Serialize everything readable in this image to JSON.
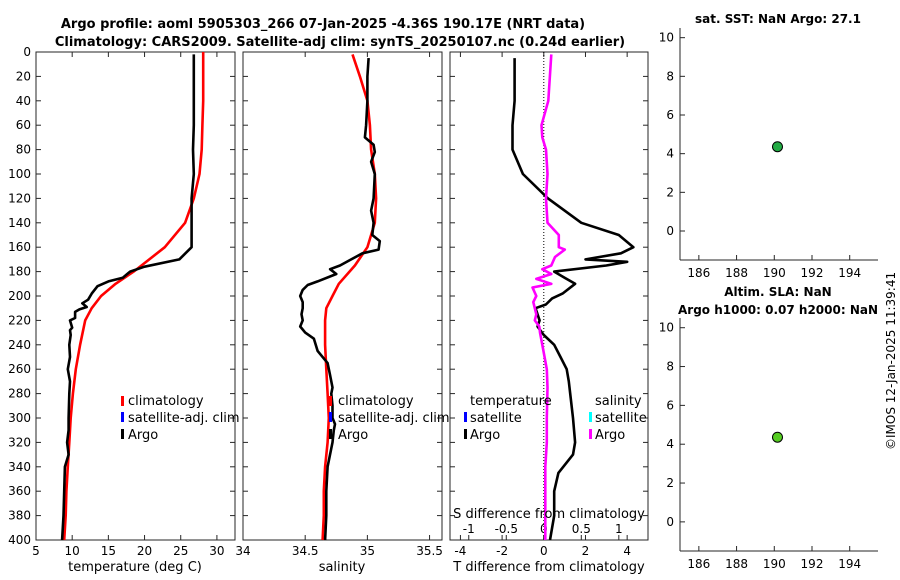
{
  "title": {
    "line1": "Argo profile: aoml 5905303_266 07-Jan-2025 -4.36S 190.17E (NRT data)",
    "line2": "Climatology: CARS2009. Satellite-adj clim: synTS_20250107.nc (0.24d earlier)"
  },
  "timestamp": "©IMOS 12-Jan-2025 11:39:41",
  "colors": {
    "climatology": "#ff0000",
    "satellite_adj": "#0000ff",
    "argo": "#000000",
    "salinity_satellite": "#00ffff",
    "salinity_argo": "#ff00ff",
    "dot_sst": "#22aa44",
    "dot_sla": "#55cc22"
  },
  "legend_profiles": {
    "climatology": "climatology",
    "satellite": "satellite-adj. clim",
    "argo": "Argo"
  },
  "legend_diff": {
    "temperature_title": "temperature",
    "salinity_title": "salinity",
    "satellite": "satellite",
    "argo": "Argo"
  },
  "chart_data": [
    {
      "type": "line",
      "name": "temperature",
      "xlabel": "temperature (deg C)",
      "ylabel": "",
      "xlim": [
        5,
        32.5
      ],
      "ylim": [
        0,
        400
      ],
      "xticks": [
        5,
        10,
        15,
        20,
        25,
        30
      ],
      "yticks": [
        0,
        20,
        40,
        60,
        80,
        100,
        120,
        140,
        160,
        180,
        200,
        220,
        240,
        260,
        280,
        300,
        320,
        340,
        360,
        380,
        400
      ],
      "series": [
        {
          "name": "climatology",
          "color": "red",
          "points": [
            [
              28.1,
              0
            ],
            [
              28.1,
              20
            ],
            [
              28.1,
              40
            ],
            [
              28.0,
              60
            ],
            [
              27.9,
              80
            ],
            [
              27.6,
              100
            ],
            [
              26.8,
              120
            ],
            [
              25.6,
              140
            ],
            [
              22.8,
              160
            ],
            [
              18.5,
              180
            ],
            [
              16,
              190
            ],
            [
              14,
              200
            ],
            [
              12.7,
              210
            ],
            [
              11.8,
              220
            ],
            [
              11.1,
              240
            ],
            [
              10.5,
              260
            ],
            [
              10.1,
              280
            ],
            [
              9.8,
              300
            ],
            [
              9.6,
              320
            ],
            [
              9.4,
              340
            ],
            [
              9.2,
              360
            ],
            [
              9.1,
              380
            ],
            [
              8.9,
              400
            ]
          ]
        },
        {
          "name": "Argo",
          "color": "black",
          "points": [
            [
              26.8,
              2
            ],
            [
              26.8,
              20
            ],
            [
              26.8,
              40
            ],
            [
              26.8,
              60
            ],
            [
              26.7,
              80
            ],
            [
              26.8,
              100
            ],
            [
              26.5,
              120
            ],
            [
              26.5,
              140
            ],
            [
              26.5,
              160
            ],
            [
              24.8,
              170
            ],
            [
              20,
              176
            ],
            [
              18,
              180
            ],
            [
              17,
              185
            ],
            [
              15,
              188
            ],
            [
              13.5,
              192
            ],
            [
              12.7,
              198
            ],
            [
              12.2,
              203
            ],
            [
              11.4,
              206
            ],
            [
              12,
              209
            ],
            [
              11,
              211
            ],
            [
              10.4,
              213
            ],
            [
              10.4,
              218
            ],
            [
              9.7,
              220
            ],
            [
              10,
              226
            ],
            [
              9.7,
              228
            ],
            [
              9.8,
              232
            ],
            [
              9.6,
              240
            ],
            [
              9.7,
              250
            ],
            [
              9.4,
              260
            ],
            [
              9.7,
              270
            ],
            [
              9.6,
              280
            ],
            [
              9.5,
              300
            ],
            [
              9.5,
              310
            ],
            [
              9.3,
              320
            ],
            [
              9.5,
              330
            ],
            [
              9,
              340
            ],
            [
              8.9,
              360
            ],
            [
              8.8,
              380
            ],
            [
              8.6,
              400
            ]
          ]
        }
      ]
    },
    {
      "type": "line",
      "name": "salinity",
      "xlabel": "salinity",
      "xlim": [
        34,
        35.6
      ],
      "ylim": [
        0,
        400
      ],
      "xticks": [
        34,
        34.5,
        35,
        35.5
      ],
      "series": [
        {
          "name": "climatology",
          "color": "red",
          "points": [
            [
              34.88,
              2
            ],
            [
              34.94,
              20
            ],
            [
              35.0,
              40
            ],
            [
              35.02,
              60
            ],
            [
              35.03,
              80
            ],
            [
              35.06,
              100
            ],
            [
              35.07,
              120
            ],
            [
              35.06,
              140
            ],
            [
              35.0,
              160
            ],
            [
              34.9,
              175
            ],
            [
              34.77,
              190
            ],
            [
              34.72,
              200
            ],
            [
              34.67,
              210
            ],
            [
              34.66,
              220
            ],
            [
              34.66,
              240
            ],
            [
              34.67,
              260
            ],
            [
              34.68,
              280
            ],
            [
              34.69,
              300
            ],
            [
              34.68,
              320
            ],
            [
              34.66,
              340
            ],
            [
              34.65,
              360
            ],
            [
              34.65,
              380
            ],
            [
              34.64,
              400
            ]
          ]
        },
        {
          "name": "Argo",
          "color": "black",
          "points": [
            [
              35.01,
              5
            ],
            [
              35.0,
              20
            ],
            [
              35.0,
              40
            ],
            [
              34.99,
              60
            ],
            [
              34.98,
              70
            ],
            [
              35.05,
              76
            ],
            [
              35.06,
              82
            ],
            [
              35.03,
              90
            ],
            [
              35.06,
              100
            ],
            [
              35.05,
              120
            ],
            [
              35.03,
              130
            ],
            [
              35.05,
              140
            ],
            [
              35.04,
              150
            ],
            [
              35.1,
              155
            ],
            [
              35.09,
              162
            ],
            [
              34.96,
              165
            ],
            [
              34.87,
              170
            ],
            [
              34.78,
              175
            ],
            [
              34.7,
              178
            ],
            [
              34.75,
              182
            ],
            [
              34.6,
              188
            ],
            [
              34.52,
              191
            ],
            [
              34.48,
              195
            ],
            [
              34.46,
              200
            ],
            [
              34.48,
              205
            ],
            [
              34.48,
              210
            ],
            [
              34.47,
              215
            ],
            [
              34.48,
              220
            ],
            [
              34.46,
              225
            ],
            [
              34.5,
              230
            ],
            [
              34.57,
              235
            ],
            [
              34.6,
              245
            ],
            [
              34.68,
              255
            ],
            [
              34.7,
              265
            ],
            [
              34.72,
              275
            ],
            [
              34.71,
              280
            ],
            [
              34.72,
              290
            ],
            [
              34.72,
              300
            ],
            [
              34.74,
              305
            ],
            [
              34.73,
              310
            ],
            [
              34.72,
              320
            ],
            [
              34.68,
              340
            ],
            [
              34.67,
              360
            ],
            [
              34.67,
              380
            ],
            [
              34.66,
              400
            ]
          ]
        }
      ]
    },
    {
      "type": "line",
      "name": "difference_from_climatology",
      "xlabel": "T difference from climatology",
      "top_xlabel": "S difference from climatology",
      "xlim": [
        -4.5,
        5
      ],
      "ylim": [
        0,
        400
      ],
      "xticks": [
        -4,
        -2,
        0,
        2,
        4
      ],
      "top_xticks": [
        -1,
        -0.5,
        0,
        0.5,
        1
      ],
      "top_xticklabels": [
        "-1",
        "-0.5",
        "0",
        "0.5",
        "1"
      ],
      "series": [
        {
          "name": "T Argo",
          "color": "black",
          "axis": "T",
          "points": [
            [
              -1.4,
              5
            ],
            [
              -1.4,
              20
            ],
            [
              -1.4,
              40
            ],
            [
              -1.5,
              60
            ],
            [
              -1.5,
              80
            ],
            [
              -1,
              100
            ],
            [
              0.2,
              120
            ],
            [
              1.8,
              140
            ],
            [
              3.6,
              150
            ],
            [
              4.3,
              160
            ],
            [
              3.7,
              165
            ],
            [
              2,
              170
            ],
            [
              4,
              172
            ],
            [
              3,
              175
            ],
            [
              0.5,
              180
            ],
            [
              1,
              185
            ],
            [
              1.5,
              190
            ],
            [
              0.9,
              198
            ],
            [
              0.4,
              202
            ],
            [
              0.1,
              207
            ],
            [
              -0.4,
              210
            ],
            [
              -0.2,
              220
            ],
            [
              -0.3,
              225
            ],
            [
              0,
              232
            ],
            [
              0.5,
              240
            ],
            [
              0.8,
              250
            ],
            [
              1.1,
              260
            ],
            [
              1.2,
              270
            ],
            [
              1.3,
              285
            ],
            [
              1.4,
              300
            ],
            [
              1.5,
              320
            ],
            [
              1.4,
              330
            ],
            [
              0.7,
              345
            ],
            [
              0.5,
              360
            ],
            [
              0.5,
              380
            ],
            [
              0.3,
              400
            ]
          ]
        },
        {
          "name": "S Argo",
          "color": "magenta",
          "axis": "S",
          "points": [
            [
              0.1,
              2
            ],
            [
              0.06,
              40
            ],
            [
              -0.03,
              60
            ],
            [
              -0.02,
              70
            ],
            [
              0.03,
              80
            ],
            [
              0.05,
              100
            ],
            [
              0.03,
              120
            ],
            [
              0.05,
              140
            ],
            [
              0.2,
              150
            ],
            [
              0.2,
              160
            ],
            [
              0.28,
              162
            ],
            [
              0.15,
              168
            ],
            [
              0.1,
              175
            ],
            [
              -0.02,
              178
            ],
            [
              0.1,
              182
            ],
            [
              -0.1,
              186
            ],
            [
              0.1,
              190
            ],
            [
              -0.15,
              193
            ],
            [
              -0.1,
              200
            ],
            [
              -0.14,
              205
            ],
            [
              -0.12,
              210
            ],
            [
              -0.1,
              215
            ],
            [
              -0.12,
              220
            ],
            [
              -0.06,
              225
            ],
            [
              -0.05,
              230
            ],
            [
              -0.02,
              240
            ],
            [
              0.04,
              260
            ],
            [
              0.05,
              275
            ],
            [
              0.04,
              300
            ],
            [
              0.04,
              320
            ],
            [
              0.02,
              340
            ],
            [
              0.02,
              360
            ],
            [
              0.02,
              380
            ],
            [
              0.02,
              400
            ]
          ]
        }
      ]
    },
    {
      "type": "scatter",
      "name": "satellite_sst",
      "title": "sat. SST: NaN Argo: 27.1",
      "xlim": [
        185,
        195.5
      ],
      "ylim": [
        -1.5,
        10.5
      ],
      "xticks": [
        186,
        188,
        190,
        192,
        194
      ],
      "yticks": [
        0,
        2,
        4,
        6,
        8,
        10
      ],
      "points": [
        [
          190.17,
          4.36
        ]
      ]
    },
    {
      "type": "scatter",
      "name": "altimetry_sla",
      "title_line1": "Altim. SLA: NaN",
      "title_line2": "Argo h1000: 0.07 h2000: NaN",
      "xlim": [
        185,
        195.5
      ],
      "ylim": [
        -1.5,
        10.5
      ],
      "xticks": [
        186,
        188,
        190,
        192,
        194
      ],
      "yticks": [
        0,
        2,
        4,
        6,
        8,
        10
      ],
      "points": [
        [
          190.17,
          4.36
        ]
      ]
    }
  ]
}
